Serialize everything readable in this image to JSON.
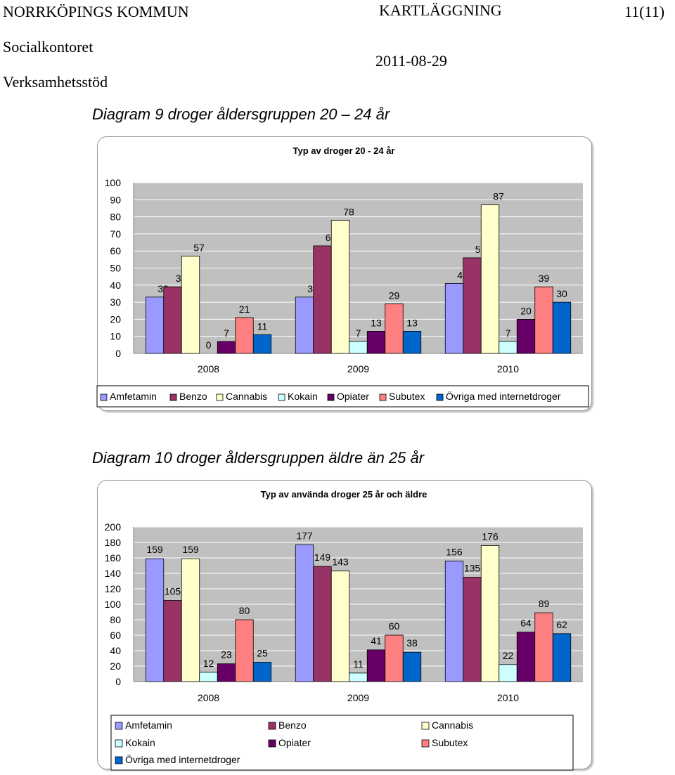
{
  "header": {
    "org": "NORRKÖPINGS KOMMUN",
    "doc_type": "KARTLÄGGNING",
    "page": "11(11)",
    "dept": "Socialkontoret",
    "date": "2011-08-29",
    "unit": "Verksamhetsstöd"
  },
  "captions": {
    "diagram9": "Diagram 9   droger åldersgruppen 20 – 24 år",
    "diagram10": "Diagram 10   droger åldersgruppen äldre än 25 år"
  },
  "colors": {
    "Amfetamin": "#9999ff",
    "Benzo": "#993366",
    "Cannabis": "#ffffcc",
    "Kokain": "#ccffff",
    "Opiater": "#660066",
    "Subutex": "#ff8080",
    "Övriga med internetdroger": "#0066cc"
  },
  "chart_data": [
    {
      "type": "bar",
      "title": "Typ av droger 20 - 24 år",
      "categories": [
        "2008",
        "2009",
        "2010"
      ],
      "ylim": [
        0,
        100
      ],
      "yticks": [
        0,
        10,
        20,
        30,
        40,
        50,
        60,
        70,
        80,
        90,
        100
      ],
      "grid": true,
      "legend_position": "bottom",
      "series": [
        {
          "name": "Amfetamin",
          "values": [
            33,
            33,
            41
          ]
        },
        {
          "name": "Benzo",
          "values": [
            39,
            63,
            56
          ]
        },
        {
          "name": "Cannabis",
          "values": [
            57,
            78,
            87
          ]
        },
        {
          "name": "Kokain",
          "values": [
            0,
            7,
            7
          ]
        },
        {
          "name": "Opiater",
          "values": [
            7,
            13,
            20
          ]
        },
        {
          "name": "Subutex",
          "values": [
            21,
            29,
            39
          ]
        },
        {
          "name": "Övriga med internetdroger",
          "values": [
            11,
            13,
            30
          ]
        }
      ]
    },
    {
      "type": "bar",
      "title": "Typ av använda droger 25 år och äldre",
      "categories": [
        "2008",
        "2009",
        "2010"
      ],
      "ylim": [
        0,
        200
      ],
      "yticks": [
        0,
        20,
        40,
        60,
        80,
        100,
        120,
        140,
        160,
        180,
        200
      ],
      "grid": true,
      "legend_position": "bottom",
      "series": [
        {
          "name": "Amfetamin",
          "values": [
            159,
            177,
            156
          ]
        },
        {
          "name": "Benzo",
          "values": [
            105,
            149,
            135
          ]
        },
        {
          "name": "Cannabis",
          "values": [
            159,
            143,
            176
          ]
        },
        {
          "name": "Kokain",
          "values": [
            12,
            11,
            22
          ]
        },
        {
          "name": "Opiater",
          "values": [
            23,
            41,
            64
          ]
        },
        {
          "name": "Subutex",
          "values": [
            80,
            60,
            89
          ]
        },
        {
          "name": "Övriga med internetdroger",
          "values": [
            25,
            38,
            62
          ]
        }
      ]
    }
  ]
}
